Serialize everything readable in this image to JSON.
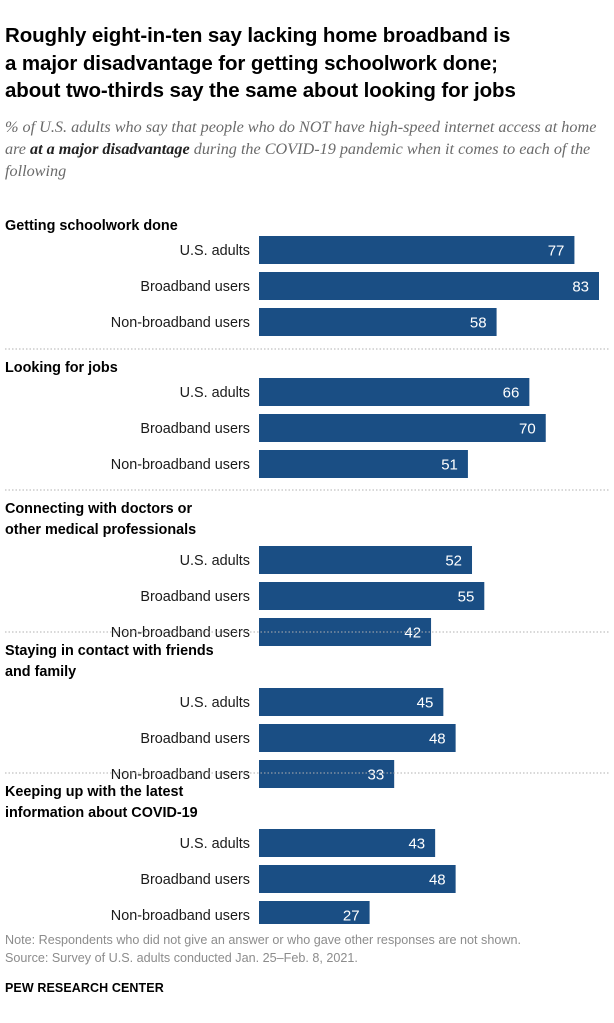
{
  "title_line1": "Roughly eight-in-ten say lacking home broadband is",
  "title_line2": "a major disadvantage for getting schoolwork done;",
  "title_line3": "about two-thirds say the same about looking for jobs",
  "subtitle_part1": "% of U.S. adults who say that people who do NOT have high-speed internet access at home are ",
  "subtitle_bold": "at a major disadvantage",
  "subtitle_part2": " during the COVID-19 pandemic when it comes to each of the following",
  "note": "Note: Respondents who did not give an answer or who gave other responses are not shown.",
  "source": "Source: Survey of U.S. adults conducted Jan. 25–Feb. 8, 2021.",
  "brand": "PEW RESEARCH CENTER",
  "colors": {
    "bar": "#1a4e84",
    "bar_label": "#ffffff",
    "separator": "#b0b0b0"
  },
  "chart_data": {
    "type": "bar",
    "orientation": "horizontal",
    "value_unit": "%",
    "xlim": [
      0,
      83
    ],
    "series_names": [
      "U.S. adults",
      "Broadband users",
      "Non-broadband users"
    ],
    "groups": [
      {
        "label": [
          "Getting schoolwork done"
        ],
        "values": [
          77,
          83,
          58
        ]
      },
      {
        "label": [
          "Looking for jobs"
        ],
        "values": [
          66,
          70,
          51
        ]
      },
      {
        "label": [
          "Connecting with doctors or",
          "other medical professionals"
        ],
        "values": [
          52,
          55,
          42
        ]
      },
      {
        "label": [
          "Staying in contact with friends",
          "and family"
        ],
        "values": [
          45,
          48,
          33
        ]
      },
      {
        "label": [
          "Keeping up with the latest",
          "information about COVID-19"
        ],
        "values": [
          43,
          48,
          27
        ]
      }
    ]
  }
}
